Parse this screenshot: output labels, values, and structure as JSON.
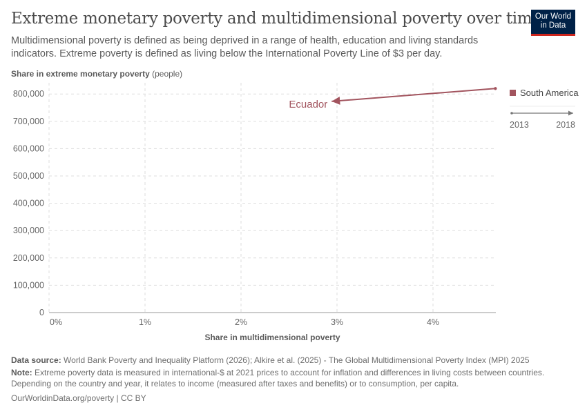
{
  "header": {
    "title": "Extreme monetary poverty and multidimensional poverty over time",
    "subtitle": "Multidimensional poverty is defined as being deprived in a range of health, education and living standards indicators. Extreme poverty is defined as living below the International Poverty Line of $3 per day.",
    "logo_line1": "Our World",
    "logo_line2": "in Data"
  },
  "chart_data": {
    "type": "scatter",
    "xlabel": "Share in multidimensional poverty",
    "ylabel_bold": "Share in extreme monetary poverty",
    "ylabel_unit": "(people)",
    "xlim": [
      0,
      4.65
    ],
    "ylim": [
      0,
      800000
    ],
    "x_ticks": [
      0,
      1,
      2,
      3,
      4
    ],
    "x_tick_labels": [
      "0%",
      "1%",
      "2%",
      "3%",
      "4%"
    ],
    "y_ticks": [
      0,
      100000,
      200000,
      300000,
      400000,
      500000,
      600000,
      700000,
      800000
    ],
    "y_tick_labels": [
      "0",
      "100,000",
      "200,000",
      "300,000",
      "400,000",
      "500,000",
      "600,000",
      "700,000",
      "800,000"
    ],
    "grid": true,
    "series": [
      {
        "name": "Ecuador",
        "color": "#a2545e",
        "points": [
          {
            "year": 2013,
            "x": 4.65,
            "y": 820000
          },
          {
            "year": 2018,
            "x": 2.93,
            "y": 773000
          }
        ]
      }
    ],
    "legend": {
      "position": "right",
      "entries": [
        {
          "label": "South America",
          "color": "#a2545e"
        }
      ]
    },
    "timeline": {
      "start": "2013",
      "end": "2018"
    }
  },
  "footer": {
    "source_label": "Data source:",
    "source": "World Bank Poverty and Inequality Platform (2026); Alkire et al. (2025) - The Global Multidimensional Poverty Index (MPI) 2025",
    "note_label": "Note:",
    "note": "Extreme poverty data is measured in international-$ at 2021 prices to account for inflation and differences in living costs between countries. Depending on the country and year, it relates to income (measured after taxes and benefits) or to consumption, per capita.",
    "url": "OurWorldinData.org/poverty | CC BY"
  }
}
